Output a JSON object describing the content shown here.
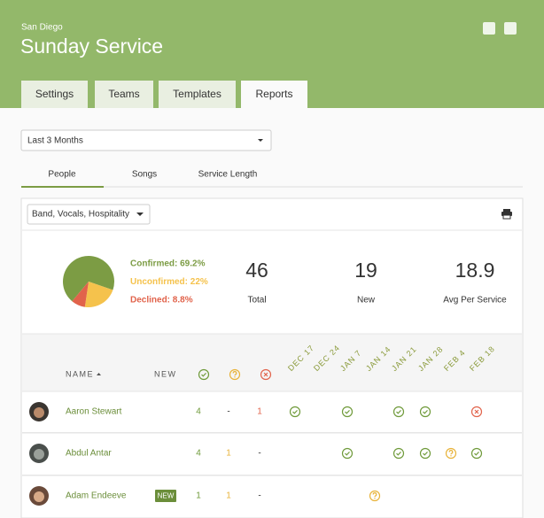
{
  "header": {
    "location": "San Diego",
    "title": "Sunday Service"
  },
  "tabs": [
    "Settings",
    "Teams",
    "Templates",
    "Reports"
  ],
  "date_range": "Last 3 Months",
  "subtabs": [
    "People",
    "Songs",
    "Service Length"
  ],
  "team_filter": "Band, Vocals, Hospitality",
  "pie": [
    {
      "label": "Confirmed: 69.2%",
      "value": 69.2,
      "color": "#7c9c44"
    },
    {
      "label": "Unconfirmed: 22%",
      "value": 22,
      "color": "#f5c24c"
    },
    {
      "label": "Declined: 8.8%",
      "value": 8.8,
      "color": "#e1634b"
    }
  ],
  "stats": [
    {
      "value": 46,
      "label": "Total"
    },
    {
      "value": 19,
      "label": "New"
    },
    {
      "value": 18.9,
      "label": "Avg Per Service"
    }
  ],
  "columns": {
    "name": "NAME",
    "new": "NEW",
    "dates": [
      "DEC 17",
      "DEC 24",
      "JAN 7",
      "JAN 14",
      "JAN 21",
      "JAN 28",
      "FEB 4",
      "FEB 18"
    ]
  },
  "rows": [
    {
      "name": "Aaron Stewart",
      "confirmed": 4,
      "unconfirmed": "-",
      "declined": 1
    },
    {
      "name": "Abdul Antar",
      "confirmed": 4,
      "unconfirmed": 1,
      "declined": "-"
    },
    {
      "name": "Adam Endeeve",
      "badge": "NEW",
      "confirmed": 1,
      "unconfirmed": 1,
      "declined": "-"
    }
  ]
}
